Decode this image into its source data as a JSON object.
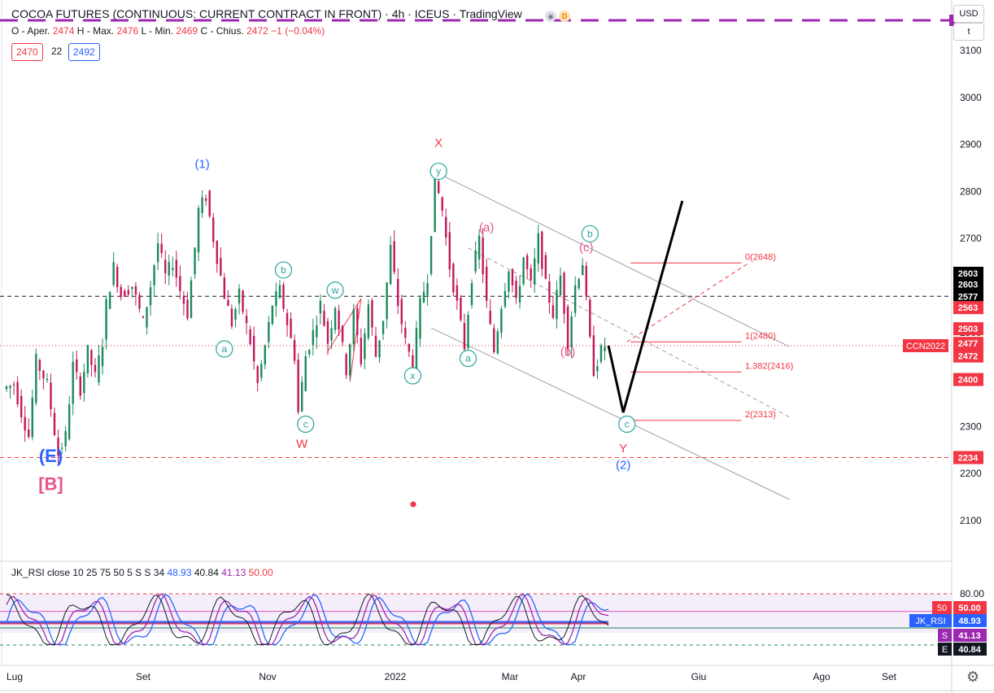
{
  "header": {
    "title": "COCOA FUTURES (CONTINUOUS: CURRENT CONTRACT IN FRONT) · 4h · ICEUS · TradingView",
    "ohlc": {
      "o_label": "O - Aper.",
      "o": "2474",
      "h_label": "H - Max.",
      "h": "2476",
      "l_label": "L - Min.",
      "l": "2469",
      "c_label": "C - Chius.",
      "c": "2472",
      "chg": "−1 (−0.04%)"
    },
    "sell_value": "2470",
    "spread": "22",
    "buy_value": "2492",
    "currency": "USD",
    "scale_mode": "t"
  },
  "rsi": {
    "legend": "JK_RSI close 10 25 75 50 5 S S 34",
    "values": [
      "48.93",
      "40.84",
      "41.13",
      "50.00"
    ],
    "colors": [
      "#2962ff",
      "#131722",
      "#9c27b0",
      "#f23645"
    ],
    "axis_ticks": [
      "80.00"
    ],
    "tags": [
      {
        "label": "50",
        "value": "50.00",
        "color": "#f23645"
      },
      {
        "label": "JK_RSI",
        "value": "48.93",
        "color": "#2962ff"
      },
      {
        "label": "S",
        "value": "41.13",
        "color": "#9c27b0"
      },
      {
        "label": "E",
        "value": "40.84",
        "color": "#131722"
      }
    ]
  },
  "chart_data": {
    "type": "candlestick",
    "price_axis": {
      "min": 2050,
      "max": 3150,
      "ticks": [
        2100,
        2200,
        2300,
        2400,
        2500,
        2600,
        2700,
        2800,
        2900,
        3000,
        3100
      ]
    },
    "time_axis": [
      "Lug",
      "Set",
      "Nov",
      "2022",
      "Mar",
      "Apr",
      "Giu",
      "Ago",
      "Set"
    ],
    "price_path": [
      [
        0,
        2380
      ],
      [
        3,
        2390
      ],
      [
        5,
        2330
      ],
      [
        7,
        2280
      ],
      [
        9,
        2440
      ],
      [
        12,
        2390
      ],
      [
        15,
        2240
      ],
      [
        17,
        2280
      ],
      [
        19,
        2430
      ],
      [
        21,
        2380
      ],
      [
        23,
        2460
      ],
      [
        25,
        2405
      ],
      [
        27,
        2480
      ],
      [
        28,
        2560
      ],
      [
        30,
        2640
      ],
      [
        32,
        2580
      ],
      [
        35,
        2600
      ],
      [
        38,
        2520
      ],
      [
        40,
        2600
      ],
      [
        42,
        2690
      ],
      [
        44,
        2620
      ],
      [
        46,
        2650
      ],
      [
        48,
        2590
      ],
      [
        50,
        2540
      ],
      [
        52,
        2680
      ],
      [
        53,
        2760
      ],
      [
        55,
        2790
      ],
      [
        57,
        2700
      ],
      [
        60,
        2580
      ],
      [
        62,
        2520
      ],
      [
        64,
        2580
      ],
      [
        67,
        2480
      ],
      [
        69,
        2390
      ],
      [
        71,
        2470
      ],
      [
        73,
        2560
      ],
      [
        75,
        2590
      ],
      [
        77,
        2520
      ],
      [
        79,
        2450
      ],
      [
        80,
        2330
      ],
      [
        82,
        2450
      ],
      [
        84,
        2500
      ],
      [
        86,
        2560
      ],
      [
        88,
        2480
      ],
      [
        90,
        2560
      ],
      [
        93,
        2420
      ],
      [
        95,
        2540
      ],
      [
        97,
        2440
      ],
      [
        99,
        2560
      ],
      [
        101,
        2450
      ],
      [
        103,
        2530
      ],
      [
        105,
        2680
      ],
      [
        107,
        2560
      ],
      [
        109,
        2480
      ],
      [
        111,
        2430
      ],
      [
        113,
        2560
      ],
      [
        115,
        2620
      ],
      [
        116,
        2720
      ],
      [
        117,
        2830
      ],
      [
        119,
        2760
      ],
      [
        121,
        2640
      ],
      [
        123,
        2560
      ],
      [
        125,
        2470
      ],
      [
        127,
        2620
      ],
      [
        129,
        2700
      ],
      [
        131,
        2560
      ],
      [
        133,
        2460
      ],
      [
        135,
        2560
      ],
      [
        137,
        2640
      ],
      [
        139,
        2560
      ],
      [
        141,
        2660
      ],
      [
        143,
        2600
      ],
      [
        145,
        2700
      ],
      [
        147,
        2600
      ],
      [
        149,
        2540
      ],
      [
        151,
        2620
      ],
      [
        153,
        2480
      ],
      [
        155,
        2600
      ],
      [
        157,
        2650
      ],
      [
        159,
        2480
      ],
      [
        160,
        2420
      ],
      [
        161,
        2440
      ],
      [
        162,
        2460
      ],
      [
        163,
        2472
      ]
    ],
    "projection": [
      [
        163,
        2472
      ],
      [
        167,
        2330
      ],
      [
        183,
        2780
      ]
    ],
    "levels": [
      {
        "label": "0(2648)",
        "price": 2648
      },
      {
        "label": "1(2480)",
        "price": 2480
      },
      {
        "label": "1.382(2416)",
        "price": 2416
      },
      {
        "label": "2(2313)",
        "price": 2313
      }
    ],
    "horizontal_lines": [
      {
        "price": 2577,
        "style": "dashed",
        "color": "#131722"
      },
      {
        "price": 2234,
        "style": "dashed",
        "color": "#f23645"
      },
      {
        "price": 2472,
        "style": "dotted",
        "color": "#f23645"
      }
    ],
    "price_tags": [
      {
        "value": "2603",
        "price": 2626,
        "bg": "#000000"
      },
      {
        "value": "2603",
        "price": 2603,
        "bg": "#000000"
      },
      {
        "value": "2577",
        "price": 2577,
        "bg": "#000000"
      },
      {
        "value": "2563",
        "price": 2553,
        "bg": "#f23645"
      },
      {
        "value": "2503",
        "price": 2508,
        "bg": "#f23645"
      },
      {
        "value": "2477",
        "price": 2477,
        "bg": "#f23645"
      },
      {
        "value": "2472",
        "price": 2450,
        "bg": "#f23645"
      },
      {
        "value": "2400",
        "price": 2400,
        "bg": "#f23645"
      },
      {
        "value": "2234",
        "price": 2234,
        "bg": "#f23645"
      }
    ],
    "symbol_tag": "CCN2022",
    "wave_labels": [
      {
        "text": "(1)",
        "bar": 53,
        "price": 2850,
        "color": "#2962ff",
        "style": "plain"
      },
      {
        "text": "(E)",
        "bar": 12,
        "price": 2225,
        "color": "#2962ff",
        "style": "big"
      },
      {
        "text": "[B]",
        "bar": 12,
        "price": 2165,
        "color": "#e8548c",
        "style": "big"
      },
      {
        "text": "X",
        "bar": 117,
        "price": 2895,
        "color": "#f23645",
        "style": "plain"
      },
      {
        "text": "W",
        "bar": 80,
        "price": 2255,
        "color": "#f23645",
        "style": "plain"
      },
      {
        "text": "Y",
        "bar": 167,
        "price": 2245,
        "color": "#f23645",
        "style": "plain"
      },
      {
        "text": "(2)",
        "bar": 167,
        "price": 2210,
        "color": "#2962ff",
        "style": "plain"
      },
      {
        "text": "(a)",
        "bar": 130,
        "price": 2715,
        "color": "#e8548c",
        "style": "plain"
      },
      {
        "text": "(b)",
        "bar": 152,
        "price": 2450,
        "color": "#e8548c",
        "style": "plain"
      },
      {
        "text": "(c)",
        "bar": 157,
        "price": 2673,
        "color": "#e8548c",
        "style": "plain"
      },
      {
        "text": "a",
        "bar": 59,
        "price": 2465,
        "color": "#26a69a",
        "style": "circle"
      },
      {
        "text": "b",
        "bar": 75,
        "price": 2633,
        "color": "#26a69a",
        "style": "circle"
      },
      {
        "text": "c",
        "bar": 81,
        "price": 2305,
        "color": "#26a69a",
        "style": "circle"
      },
      {
        "text": "w",
        "bar": 89,
        "price": 2590,
        "color": "#26a69a",
        "style": "circle"
      },
      {
        "text": "x",
        "bar": 110,
        "price": 2408,
        "color": "#26a69a",
        "style": "circle"
      },
      {
        "text": "y",
        "bar": 117,
        "price": 2843,
        "color": "#26a69a",
        "style": "circle"
      },
      {
        "text": "a",
        "bar": 125,
        "price": 2445,
        "color": "#26a69a",
        "style": "circle"
      },
      {
        "text": "b",
        "bar": 158,
        "price": 2710,
        "color": "#26a69a",
        "style": "circle"
      },
      {
        "text": "c",
        "bar": 168,
        "price": 2305,
        "color": "#26a69a",
        "style": "circle"
      }
    ]
  }
}
